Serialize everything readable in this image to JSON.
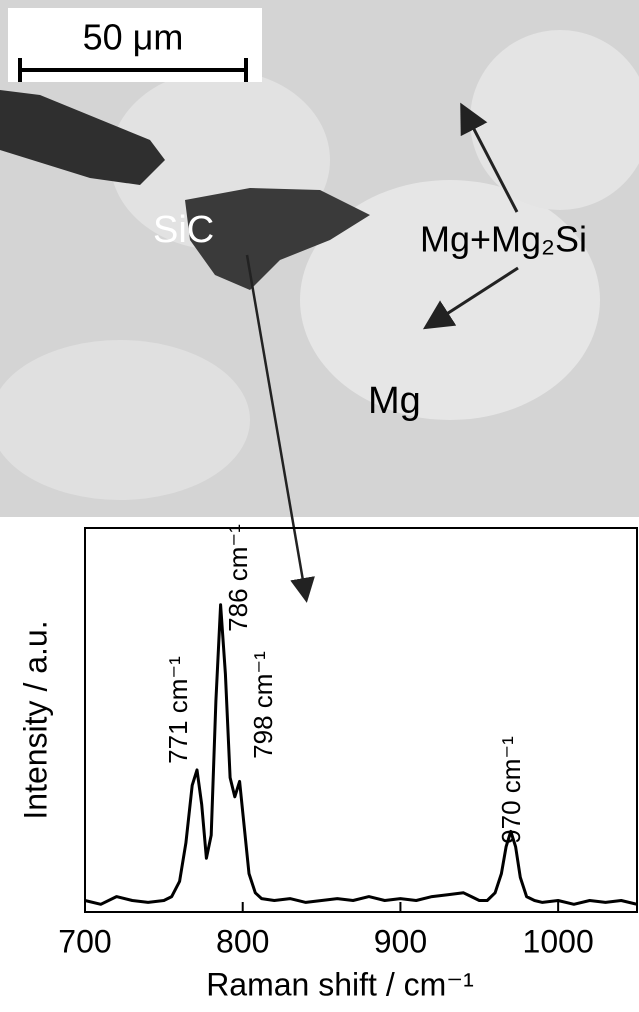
{
  "micrograph": {
    "scale_bar": "50 μm",
    "labels": [
      "SiC",
      "Mg+Mg₂Si",
      "Mg"
    ]
  },
  "chart_data": {
    "type": "line",
    "x_label": "Raman shift / cm⁻¹",
    "y_label": "Intensity / a.u.",
    "annotations": [
      "771 cm⁻¹",
      "786 cm⁻¹",
      "798 cm⁻¹",
      "970 cm⁻¹"
    ],
    "x": [
      700,
      710,
      720,
      730,
      740,
      750,
      755,
      760,
      764,
      768,
      771,
      774,
      777,
      780,
      783,
      786,
      789,
      792,
      795,
      798,
      801,
      804,
      808,
      812,
      820,
      830,
      840,
      850,
      860,
      870,
      880,
      890,
      900,
      910,
      920,
      930,
      940,
      945,
      950,
      955,
      960,
      964,
      967,
      970,
      973,
      976,
      980,
      985,
      990,
      1000,
      1010,
      1020,
      1030,
      1040,
      1050
    ],
    "series": [
      {
        "color": "#000000",
        "values": [
          3,
          2,
          4,
          3,
          2.5,
          3,
          4,
          8,
          18,
          33,
          37,
          28,
          14,
          20,
          55,
          80,
          62,
          35,
          30,
          34,
          22,
          10,
          5,
          3.5,
          3,
          3.5,
          2.5,
          3,
          3.5,
          3,
          4,
          3,
          3.5,
          3,
          4,
          4.5,
          5,
          4,
          3,
          3,
          5,
          10,
          17,
          21,
          17,
          9,
          4,
          3,
          2.5,
          3,
          2,
          3,
          2.5,
          3,
          2
        ]
      }
    ],
    "xlim": [
      700,
      1050
    ],
    "ylim": [
      0,
      100
    ],
    "xticks": [
      700,
      800,
      900,
      1000
    ]
  }
}
